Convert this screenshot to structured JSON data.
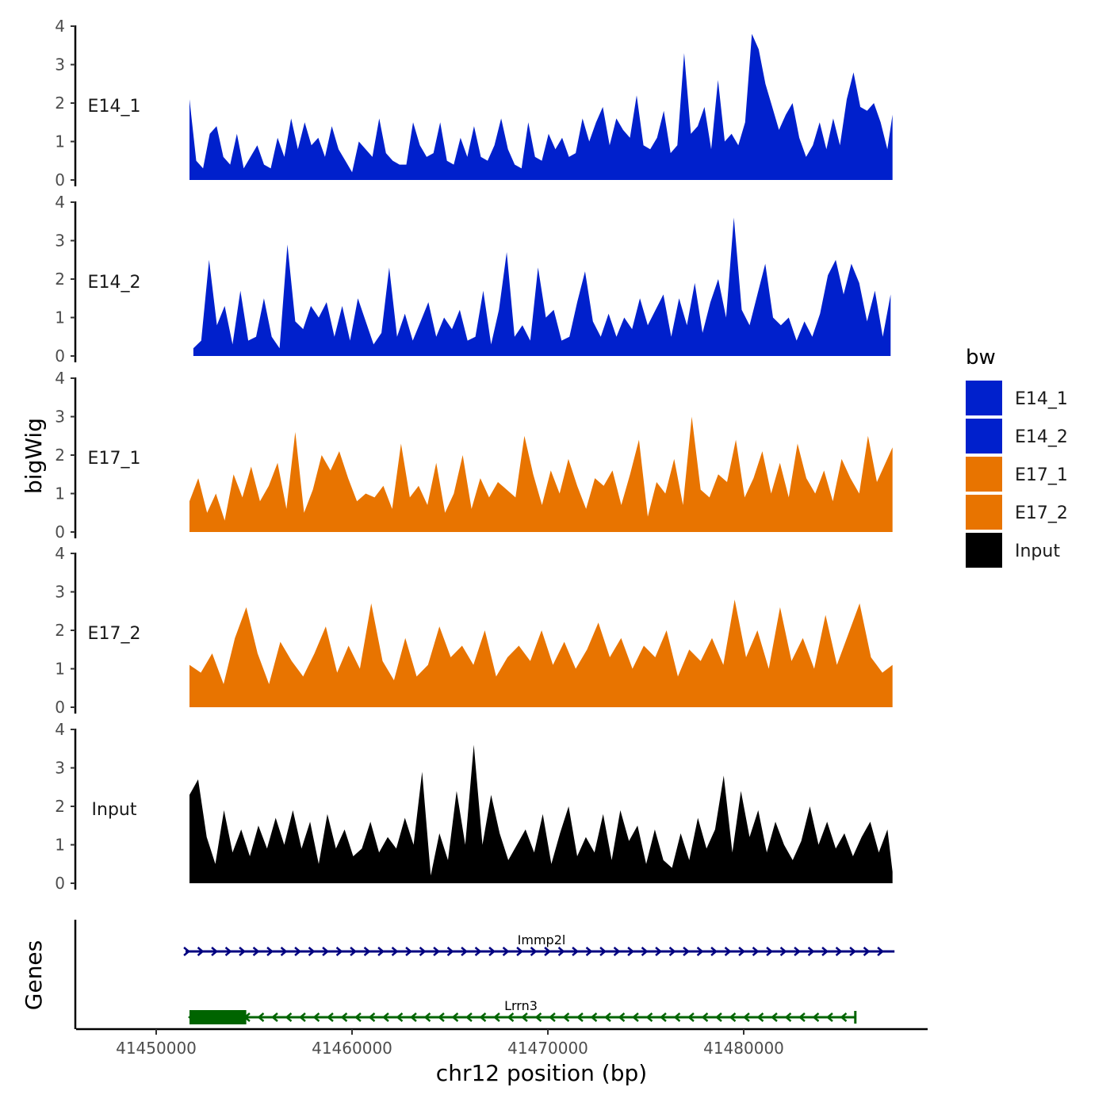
{
  "chart_data": {
    "type": "area",
    "chromosome": "chr12",
    "xlabel": "chr12 position (bp)",
    "ylabel": "bigWig",
    "genes_label": "Genes",
    "xlim": [
      41447000,
      41488000
    ],
    "x_ticks": [
      41450000,
      41460000,
      41470000,
      41480000
    ],
    "x_tick_labels": [
      "41450000",
      "41460000",
      "41470000",
      "41480000"
    ],
    "ylim": [
      0,
      4
    ],
    "y_ticks": [
      0,
      1,
      2,
      3,
      4
    ],
    "y_tick_labels": [
      "0",
      "1",
      "2",
      "3",
      "4"
    ],
    "x_range": [
      41451700,
      41487600
    ],
    "legend": {
      "title": "bw",
      "placement": "right",
      "items": [
        {
          "label": "E14_1",
          "color": "#0020cc"
        },
        {
          "label": "E14_2",
          "color": "#0020cc"
        },
        {
          "label": "E17_1",
          "color": "#e87400"
        },
        {
          "label": "E17_2",
          "color": "#e87400"
        },
        {
          "label": "Input",
          "color": "#000000"
        }
      ]
    },
    "series": [
      {
        "name": "E14_1",
        "color": "#0020cc",
        "values": [
          2.1,
          0.5,
          0.3,
          1.2,
          1.4,
          0.6,
          0.4,
          1.2,
          0.3,
          0.6,
          0.9,
          0.4,
          0.3,
          1.1,
          0.6,
          1.6,
          0.8,
          1.5,
          0.9,
          1.1,
          0.6,
          1.4,
          0.8,
          0.5,
          0.2,
          1.0,
          0.8,
          0.6,
          1.6,
          0.7,
          0.5,
          0.4,
          0.4,
          1.5,
          0.9,
          0.6,
          0.7,
          1.5,
          0.5,
          0.4,
          1.1,
          0.6,
          1.4,
          0.6,
          0.5,
          0.9,
          1.6,
          0.8,
          0.4,
          0.3,
          1.5,
          0.6,
          0.5,
          1.2,
          0.8,
          1.1,
          0.6,
          0.7,
          1.6,
          1.0,
          1.5,
          1.9,
          0.9,
          1.6,
          1.3,
          1.1,
          2.2,
          0.9,
          0.8,
          1.1,
          1.8,
          0.7,
          0.9,
          3.3,
          1.2,
          1.4,
          1.9,
          0.8,
          2.6,
          1.0,
          1.2,
          0.9,
          1.5,
          3.8,
          3.4,
          2.5,
          1.9,
          1.3,
          1.7,
          2.0,
          1.1,
          0.6,
          0.9,
          1.5,
          0.8,
          1.6,
          0.9,
          2.1,
          2.8,
          1.9,
          1.8,
          2.0,
          1.5,
          0.8,
          1.7,
          0.5
        ],
        "x": [
          41451700,
          41452046,
          41452392,
          41452738,
          41453084,
          41453430,
          41453776,
          41454122,
          41454468,
          41454814,
          41455160,
          41455506,
          41455852,
          41456198,
          41456544,
          41456890,
          41457236,
          41457582,
          41457928,
          41458274,
          41458620,
          41458966,
          41459312,
          41459658,
          41460004,
          41460350,
          41460696,
          41461042,
          41461388,
          41461734,
          41462080,
          41462426,
          41462772,
          41463118,
          41463464,
          41463810,
          41464156,
          41464502,
          41464848,
          41465194,
          41465540,
          41465886,
          41466232,
          41466578,
          41466924,
          41467270,
          41467616,
          41467962,
          41468308,
          41468654,
          41469000,
          41469346,
          41469692,
          41470038,
          41470384,
          41470730,
          41471076,
          41471422,
          41471768,
          41472114,
          41472460,
          41472806,
          41473152,
          41473498,
          41473844,
          41474190,
          41474536,
          41474882,
          41475228,
          41475574,
          41475920,
          41476266,
          41476612,
          41476958,
          41477304,
          41477650,
          41477996,
          41478342,
          41478688,
          41479034,
          41479380,
          41479726,
          41480072,
          41480418,
          41480764,
          41481110,
          41481456,
          41481802,
          41482148,
          41482494,
          41482840,
          41483186,
          41483532,
          41483878,
          41484224,
          41484570,
          41484916,
          41485262,
          41485608,
          41485954,
          41486300,
          41486646,
          41486992,
          41487338,
          41487600,
          41487600
        ]
      },
      {
        "name": "E14_2",
        "color": "#0020cc",
        "values": [
          0.2,
          0.4,
          2.5,
          0.8,
          1.3,
          0.3,
          1.7,
          0.4,
          0.5,
          1.5,
          0.5,
          0.2,
          2.9,
          0.9,
          0.7,
          1.3,
          1.0,
          1.4,
          0.5,
          1.3,
          0.4,
          1.5,
          0.9,
          0.3,
          0.6,
          2.3,
          0.5,
          1.1,
          0.4,
          0.9,
          1.4,
          0.5,
          1.0,
          0.7,
          1.2,
          0.4,
          0.5,
          1.7,
          0.3,
          1.2,
          2.7,
          0.5,
          0.8,
          0.4,
          2.3,
          1.0,
          1.2,
          0.4,
          0.5,
          1.4,
          2.2,
          0.9,
          0.5,
          1.1,
          0.5,
          1.0,
          0.7,
          1.5,
          0.8,
          1.2,
          1.6,
          0.5,
          1.5,
          0.8,
          1.9,
          0.6,
          1.4,
          2.0,
          1.0,
          3.6,
          1.2,
          0.8,
          1.6,
          2.4,
          1.0,
          0.8,
          1.0,
          0.4,
          0.9,
          0.5,
          1.1,
          2.1,
          2.5,
          1.6,
          2.4,
          1.9,
          0.9,
          1.7,
          0.5,
          1.6
        ],
        "x": [
          41451900,
          41452300,
          41452700,
          41453100,
          41453500,
          41453900,
          41454300,
          41454700,
          41455100,
          41455500,
          41455900,
          41456300,
          41456700,
          41457100,
          41457500,
          41457900,
          41458300,
          41458700,
          41459100,
          41459500,
          41459900,
          41460300,
          41460700,
          41461100,
          41461500,
          41461900,
          41462300,
          41462700,
          41463100,
          41463500,
          41463900,
          41464300,
          41464700,
          41465100,
          41465500,
          41465900,
          41466300,
          41466700,
          41467100,
          41467500,
          41467900,
          41468300,
          41468700,
          41469100,
          41469500,
          41469900,
          41470300,
          41470700,
          41471100,
          41471500,
          41471900,
          41472300,
          41472700,
          41473100,
          41473500,
          41473900,
          41474300,
          41474700,
          41475100,
          41475500,
          41475900,
          41476300,
          41476700,
          41477100,
          41477500,
          41477900,
          41478300,
          41478700,
          41479100,
          41479500,
          41479900,
          41480300,
          41480700,
          41481100,
          41481500,
          41481900,
          41482300,
          41482700,
          41483100,
          41483500,
          41483900,
          41484300,
          41484700,
          41485100,
          41485500,
          41485900,
          41486300,
          41486700,
          41487100,
          41487500
        ]
      },
      {
        "name": "E17_1",
        "color": "#e87400",
        "values": [
          0.8,
          1.4,
          0.5,
          1.0,
          0.3,
          1.5,
          0.9,
          1.7,
          0.8,
          1.2,
          1.8,
          0.6,
          2.6,
          0.5,
          1.1,
          2.0,
          1.6,
          2.1,
          1.4,
          0.8,
          1.0,
          0.9,
          1.2,
          0.6,
          2.3,
          0.9,
          1.2,
          0.7,
          1.8,
          0.5,
          1.0,
          2.0,
          0.6,
          1.4,
          0.9,
          1.3,
          1.1,
          0.9,
          2.5,
          1.5,
          0.7,
          1.6,
          1.0,
          1.9,
          1.2,
          0.6,
          1.4,
          1.2,
          1.6,
          0.7,
          1.5,
          2.4,
          0.4,
          1.3,
          1.0,
          1.9,
          0.7,
          3.0,
          1.1,
          0.9,
          1.5,
          1.3,
          2.4,
          0.9,
          1.4,
          2.1,
          1.0,
          1.8,
          0.9,
          2.3,
          1.4,
          1.0,
          1.6,
          0.8,
          1.9,
          1.4,
          1.0,
          2.5,
          1.3,
          2.2
        ],
        "x": [
          41451700,
          41452150,
          41452600,
          41453050,
          41453500,
          41453950,
          41454400,
          41454850,
          41455300,
          41455750,
          41456200,
          41456650,
          41457100,
          41457550,
          41458000,
          41458450,
          41458900,
          41459350,
          41459800,
          41460250,
          41460700,
          41461150,
          41461600,
          41462050,
          41462500,
          41462950,
          41463400,
          41463850,
          41464300,
          41464750,
          41465200,
          41465650,
          41466100,
          41466550,
          41467000,
          41467450,
          41467900,
          41468350,
          41468800,
          41469250,
          41469700,
          41470150,
          41470600,
          41471050,
          41471500,
          41471950,
          41472400,
          41472850,
          41473300,
          41473750,
          41474200,
          41474650,
          41475100,
          41475550,
          41476000,
          41476450,
          41476900,
          41477350,
          41477800,
          41478250,
          41478700,
          41479150,
          41479600,
          41480050,
          41480500,
          41480950,
          41481400,
          41481850,
          41482300,
          41482750,
          41483200,
          41483650,
          41484100,
          41484550,
          41485000,
          41485450,
          41485900,
          41486350,
          41486800,
          41487600
        ]
      },
      {
        "name": "E17_2",
        "color": "#e87400",
        "values": [
          1.1,
          0.9,
          1.4,
          0.6,
          1.8,
          2.6,
          1.4,
          0.6,
          1.7,
          1.2,
          0.8,
          1.4,
          2.1,
          0.9,
          1.6,
          1.0,
          2.7,
          1.2,
          0.7,
          1.8,
          0.8,
          1.1,
          2.1,
          1.3,
          1.6,
          1.1,
          2.0,
          0.8,
          1.3,
          1.6,
          1.2,
          2.0,
          1.1,
          1.7,
          1.0,
          1.5,
          2.2,
          1.3,
          1.8,
          1.0,
          1.6,
          1.3,
          2.0,
          0.8,
          1.5,
          1.2,
          1.8,
          1.1,
          2.8,
          1.3,
          2.0,
          1.0,
          2.6,
          1.2,
          1.8,
          1.0,
          2.4,
          1.1,
          1.9,
          2.7,
          1.3,
          0.9,
          1.1
        ],
        "x": [
          41451700,
          41452280,
          41452860,
          41453440,
          41454020,
          41454600,
          41455180,
          41455760,
          41456340,
          41456920,
          41457500,
          41458080,
          41458660,
          41459240,
          41459820,
          41460400,
          41460980,
          41461560,
          41462140,
          41462720,
          41463300,
          41463880,
          41464460,
          41465040,
          41465620,
          41466200,
          41466780,
          41467360,
          41467940,
          41468520,
          41469100,
          41469680,
          41470260,
          41470840,
          41471420,
          41472000,
          41472580,
          41473160,
          41473740,
          41474320,
          41474900,
          41475480,
          41476060,
          41476640,
          41477220,
          41477800,
          41478380,
          41478960,
          41479540,
          41480120,
          41480700,
          41481280,
          41481860,
          41482440,
          41483020,
          41483600,
          41484180,
          41484760,
          41485340,
          41485920,
          41486500,
          41487080,
          41487600
        ]
      },
      {
        "name": "Input",
        "color": "#000000",
        "values": [
          2.3,
          2.7,
          1.2,
          0.5,
          1.9,
          0.8,
          1.4,
          0.7,
          1.5,
          0.9,
          1.7,
          1.0,
          1.9,
          0.9,
          1.6,
          0.5,
          1.8,
          0.9,
          1.4,
          0.7,
          0.9,
          1.6,
          0.8,
          1.2,
          0.9,
          1.7,
          1.0,
          2.9,
          0.2,
          1.3,
          0.6,
          2.4,
          1.0,
          3.6,
          1.0,
          2.3,
          1.3,
          0.6,
          1.0,
          1.4,
          0.8,
          1.8,
          0.5,
          1.3,
          2.0,
          0.7,
          1.2,
          0.8,
          1.8,
          0.6,
          1.9,
          1.1,
          1.5,
          0.5,
          1.4,
          0.6,
          0.4,
          1.3,
          0.6,
          1.7,
          0.9,
          1.4,
          2.8,
          0.8,
          2.4,
          1.2,
          1.9,
          0.8,
          1.6,
          1.0,
          0.6,
          1.1,
          2.0,
          1.0,
          1.6,
          0.9,
          1.3,
          0.7,
          1.2,
          1.6,
          0.8,
          1.4,
          0.3
        ],
        "x": [
          41451700,
          41452140,
          41452580,
          41453020,
          41453460,
          41453900,
          41454340,
          41454780,
          41455220,
          41455660,
          41456100,
          41456540,
          41456980,
          41457420,
          41457860,
          41458300,
          41458740,
          41459180,
          41459620,
          41460060,
          41460500,
          41460940,
          41461380,
          41461820,
          41462260,
          41462700,
          41463140,
          41463580,
          41464020,
          41464460,
          41464900,
          41465340,
          41465780,
          41466220,
          41466660,
          41467100,
          41467540,
          41467980,
          41468420,
          41468860,
          41469300,
          41469740,
          41470180,
          41470620,
          41471060,
          41471500,
          41471940,
          41472380,
          41472820,
          41473260,
          41473700,
          41474140,
          41474580,
          41475020,
          41475460,
          41475900,
          41476340,
          41476780,
          41477220,
          41477660,
          41478100,
          41478540,
          41478980,
          41479420,
          41479860,
          41480300,
          41480740,
          41481180,
          41481620,
          41482060,
          41482500,
          41482940,
          41483380,
          41483820,
          41484260,
          41484700,
          41485140,
          41485580,
          41486020,
          41486460,
          41486900,
          41487340,
          41487600
        ]
      }
    ],
    "genes": [
      {
        "name": "Immp2l",
        "start": 41451500,
        "end": 41487700,
        "strand": "+",
        "color": "#000080",
        "thick_start": null,
        "thick_end": null
      },
      {
        "name": "Lrrn3",
        "start": 41451700,
        "end": 41485700,
        "strand": "-",
        "color": "#006400",
        "thick_start": 41451700,
        "thick_end": 41454600
      }
    ]
  }
}
